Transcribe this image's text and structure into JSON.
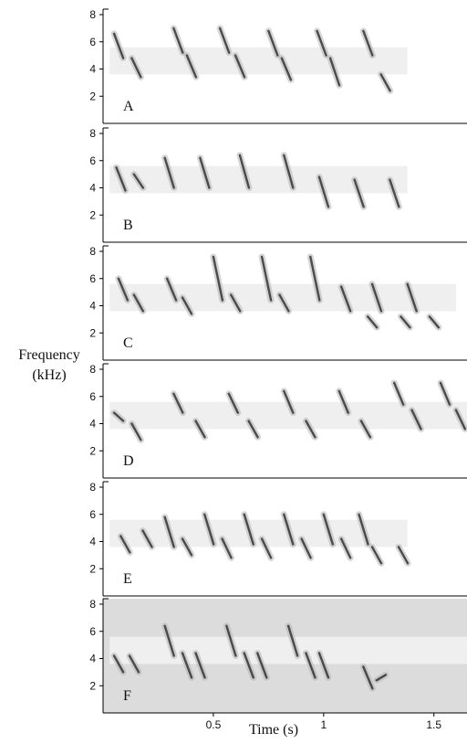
{
  "figure": {
    "ylabel_line1": "Frequency",
    "ylabel_line2": "(kHz)",
    "xlabel": "Time (s)"
  },
  "chart_data": {
    "type": "spectrogram",
    "xlabel": "Time (s)",
    "ylabel": "Frequency (kHz)",
    "xlim": [
      0,
      1.65
    ],
    "ylim": [
      0,
      8
    ],
    "xticks": [
      0.5,
      1,
      1.5
    ],
    "xtick_labels": [
      "0.5",
      "1",
      "1.5"
    ],
    "yticks": [
      2,
      4,
      6,
      8
    ],
    "ytick_labels": [
      "2",
      "4",
      "6",
      "8"
    ],
    "colors": {
      "ink": "#333333",
      "background": "#ffffff"
    },
    "panels": [
      {
        "label": "A",
        "song_end_s": 1.38,
        "syllables": [
          {
            "t": 0.05,
            "f_start": 6.6,
            "f_end": 4.8
          },
          {
            "t": 0.13,
            "f_start": 4.8,
            "f_end": 3.4
          },
          {
            "t": 0.32,
            "f_start": 7.0,
            "f_end": 5.2
          },
          {
            "t": 0.38,
            "f_start": 5.0,
            "f_end": 3.4
          },
          {
            "t": 0.53,
            "f_start": 7.0,
            "f_end": 5.2
          },
          {
            "t": 0.6,
            "f_start": 5.0,
            "f_end": 3.4
          },
          {
            "t": 0.75,
            "f_start": 6.8,
            "f_end": 5.0
          },
          {
            "t": 0.81,
            "f_start": 4.8,
            "f_end": 3.2
          },
          {
            "t": 0.97,
            "f_start": 6.8,
            "f_end": 5.0
          },
          {
            "t": 1.03,
            "f_start": 4.8,
            "f_end": 2.8
          },
          {
            "t": 1.18,
            "f_start": 6.8,
            "f_end": 5.0
          },
          {
            "t": 1.26,
            "f_start": 3.6,
            "f_end": 2.4
          }
        ]
      },
      {
        "label": "B",
        "song_end_s": 1.38,
        "syllables": [
          {
            "t": 0.06,
            "f_start": 5.5,
            "f_end": 3.8
          },
          {
            "t": 0.14,
            "f_start": 5.0,
            "f_end": 4.0
          },
          {
            "t": 0.28,
            "f_start": 6.2,
            "f_end": 4.0
          },
          {
            "t": 0.44,
            "f_start": 6.2,
            "f_end": 4.0
          },
          {
            "t": 0.62,
            "f_start": 6.4,
            "f_end": 4.0
          },
          {
            "t": 0.82,
            "f_start": 6.4,
            "f_end": 4.0
          },
          {
            "t": 0.98,
            "f_start": 4.8,
            "f_end": 2.6
          },
          {
            "t": 1.14,
            "f_start": 4.6,
            "f_end": 2.6
          },
          {
            "t": 1.3,
            "f_start": 4.6,
            "f_end": 2.6
          }
        ]
      },
      {
        "label": "C",
        "song_end_s": 1.6,
        "syllables": [
          {
            "t": 0.07,
            "f_start": 6.0,
            "f_end": 4.4
          },
          {
            "t": 0.14,
            "f_start": 4.8,
            "f_end": 3.6
          },
          {
            "t": 0.29,
            "f_start": 6.0,
            "f_end": 4.4
          },
          {
            "t": 0.36,
            "f_start": 4.6,
            "f_end": 3.4
          },
          {
            "t": 0.5,
            "f_start": 7.6,
            "f_end": 4.4
          },
          {
            "t": 0.58,
            "f_start": 4.8,
            "f_end": 3.6
          },
          {
            "t": 0.72,
            "f_start": 7.6,
            "f_end": 4.4
          },
          {
            "t": 0.8,
            "f_start": 4.8,
            "f_end": 3.6
          },
          {
            "t": 0.94,
            "f_start": 7.6,
            "f_end": 4.4
          },
          {
            "t": 1.08,
            "f_start": 5.4,
            "f_end": 3.6
          },
          {
            "t": 1.22,
            "f_start": 5.6,
            "f_end": 3.6
          },
          {
            "t": 1.38,
            "f_start": 5.6,
            "f_end": 3.6
          },
          {
            "t": 1.2,
            "f_start": 3.2,
            "f_end": 2.4
          },
          {
            "t": 1.35,
            "f_start": 3.2,
            "f_end": 2.4
          },
          {
            "t": 1.48,
            "f_start": 3.2,
            "f_end": 2.4
          }
        ]
      },
      {
        "label": "D",
        "song_end_s": 1.65,
        "syllables": [
          {
            "t": 0.05,
            "f_start": 4.8,
            "f_end": 4.2
          },
          {
            "t": 0.13,
            "f_start": 4.0,
            "f_end": 2.8
          },
          {
            "t": 0.32,
            "f_start": 6.2,
            "f_end": 4.8
          },
          {
            "t": 0.42,
            "f_start": 4.2,
            "f_end": 3.0
          },
          {
            "t": 0.57,
            "f_start": 6.2,
            "f_end": 4.8
          },
          {
            "t": 0.66,
            "f_start": 4.2,
            "f_end": 3.0
          },
          {
            "t": 0.82,
            "f_start": 6.4,
            "f_end": 4.8
          },
          {
            "t": 0.92,
            "f_start": 4.2,
            "f_end": 3.0
          },
          {
            "t": 1.07,
            "f_start": 6.4,
            "f_end": 4.8
          },
          {
            "t": 1.17,
            "f_start": 4.2,
            "f_end": 3.0
          },
          {
            "t": 1.32,
            "f_start": 7.0,
            "f_end": 5.4
          },
          {
            "t": 1.4,
            "f_start": 5.0,
            "f_end": 3.6
          },
          {
            "t": 1.53,
            "f_start": 7.0,
            "f_end": 5.4
          },
          {
            "t": 1.6,
            "f_start": 5.0,
            "f_end": 3.6
          }
        ]
      },
      {
        "label": "E",
        "song_end_s": 1.38,
        "syllables": [
          {
            "t": 0.08,
            "f_start": 4.4,
            "f_end": 3.2
          },
          {
            "t": 0.18,
            "f_start": 4.8,
            "f_end": 3.6
          },
          {
            "t": 0.28,
            "f_start": 5.8,
            "f_end": 3.6
          },
          {
            "t": 0.36,
            "f_start": 4.2,
            "f_end": 3.0
          },
          {
            "t": 0.46,
            "f_start": 6.0,
            "f_end": 3.8
          },
          {
            "t": 0.54,
            "f_start": 4.2,
            "f_end": 2.8
          },
          {
            "t": 0.64,
            "f_start": 6.0,
            "f_end": 3.8
          },
          {
            "t": 0.72,
            "f_start": 4.2,
            "f_end": 2.8
          },
          {
            "t": 0.82,
            "f_start": 6.0,
            "f_end": 3.8
          },
          {
            "t": 0.9,
            "f_start": 4.2,
            "f_end": 2.8
          },
          {
            "t": 1.0,
            "f_start": 6.0,
            "f_end": 3.8
          },
          {
            "t": 1.08,
            "f_start": 4.2,
            "f_end": 2.8
          },
          {
            "t": 1.16,
            "f_start": 6.0,
            "f_end": 3.8
          },
          {
            "t": 1.22,
            "f_start": 3.6,
            "f_end": 2.4
          },
          {
            "t": 1.34,
            "f_start": 3.6,
            "f_end": 2.4
          }
        ]
      },
      {
        "label": "F",
        "song_end_s": 1.65,
        "syllables": [
          {
            "t": 0.05,
            "f_start": 4.2,
            "f_end": 3.0
          },
          {
            "t": 0.12,
            "f_start": 4.2,
            "f_end": 3.0
          },
          {
            "t": 0.28,
            "f_start": 6.4,
            "f_end": 4.2
          },
          {
            "t": 0.36,
            "f_start": 4.4,
            "f_end": 2.6
          },
          {
            "t": 0.42,
            "f_start": 4.4,
            "f_end": 2.6
          },
          {
            "t": 0.56,
            "f_start": 6.4,
            "f_end": 4.2
          },
          {
            "t": 0.64,
            "f_start": 4.4,
            "f_end": 2.6
          },
          {
            "t": 0.7,
            "f_start": 4.4,
            "f_end": 2.6
          },
          {
            "t": 0.84,
            "f_start": 6.4,
            "f_end": 4.2
          },
          {
            "t": 0.92,
            "f_start": 4.4,
            "f_end": 2.6
          },
          {
            "t": 0.98,
            "f_start": 4.4,
            "f_end": 2.6
          },
          {
            "t": 1.18,
            "f_start": 3.4,
            "f_end": 1.8
          },
          {
            "t": 1.24,
            "f_start": 2.4,
            "f_end": 2.8
          }
        ]
      }
    ]
  }
}
